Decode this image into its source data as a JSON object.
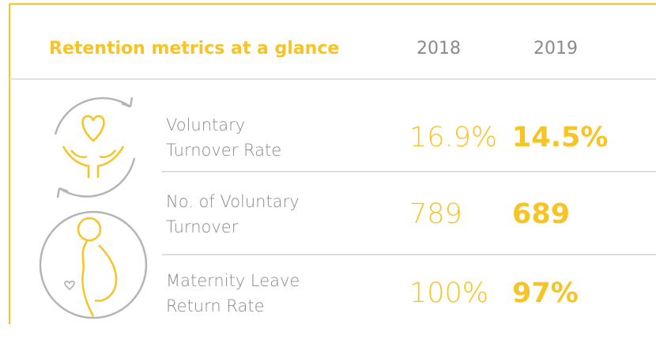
{
  "header": {
    "title": "Retention metrics at a glance",
    "years": [
      "2018",
      "2019"
    ]
  },
  "table": {
    "rows": [
      {
        "label": [
          "Voluntary",
          "Turnover Rate"
        ],
        "values": [
          "16.9%",
          "14.5%"
        ]
      },
      {
        "label": [
          "No. of Voluntary",
          "Turnover"
        ],
        "values": [
          "789",
          "689"
        ]
      },
      {
        "label": [
          "Maternity Leave",
          "Return Rate"
        ],
        "values": [
          "100%",
          "97%"
        ]
      }
    ]
  }
}
